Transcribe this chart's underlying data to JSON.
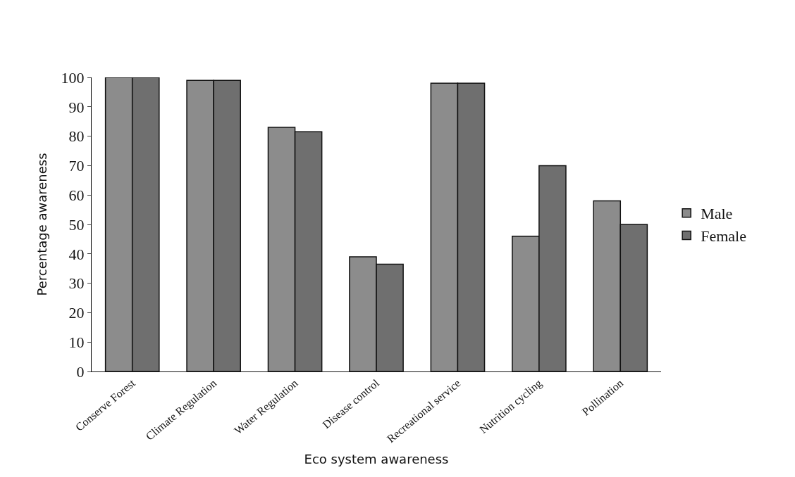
{
  "chart_data": {
    "type": "bar",
    "xlabel": "Eco system awareness",
    "ylabel": "Percentage awareness",
    "categories": [
      "Conserve Forest",
      "Climate Regulation",
      "Water Regulation",
      "Disease control",
      "Recreational service",
      "Nutrition cycling",
      "Pollination"
    ],
    "series": [
      {
        "name": "Male",
        "color": "#8c8c8c",
        "values": [
          100,
          99,
          83,
          39,
          98,
          46,
          58
        ]
      },
      {
        "name": "Female",
        "color": "#6f6f6f",
        "values": [
          100,
          99,
          81.5,
          36.5,
          98,
          70,
          50
        ]
      }
    ],
    "ylim": [
      0,
      100
    ],
    "yticks": [
      0,
      10,
      20,
      30,
      40,
      50,
      60,
      70,
      80,
      90,
      100
    ],
    "grid": false,
    "legend": "right"
  }
}
